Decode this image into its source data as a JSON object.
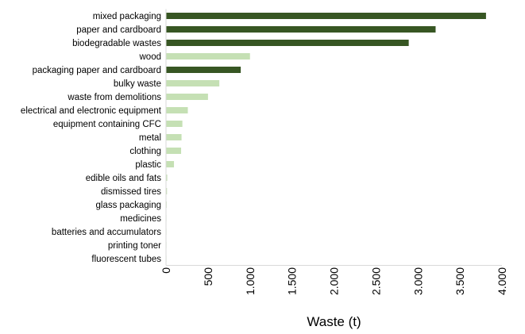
{
  "chart_data": {
    "type": "bar",
    "orientation": "horizontal",
    "title": "",
    "xlabel": "Waste (t)",
    "ylabel": "",
    "xlim": [
      0,
      4000
    ],
    "xticks": [
      0,
      500,
      1000,
      1500,
      2000,
      2500,
      3000,
      3500,
      4000
    ],
    "xtick_labels": [
      "0",
      "500",
      "1.000",
      "1.500",
      "2.000",
      "2.500",
      "3.000",
      "3.500",
      "4.000"
    ],
    "grid": false,
    "legend": "none",
    "categories": [
      "mixed packaging",
      "paper and cardboard",
      "biodegradable wastes",
      "wood",
      "packaging paper and cardboard",
      "bulky waste",
      "waste from demolitions",
      "electrical and electronic equipment",
      "equipment containing CFC",
      "metal",
      "clothing",
      "plastic",
      "edible oils and fats",
      "dismissed tires",
      "glass packaging",
      "medicines",
      "batteries and accumulators",
      "printing toner",
      "fluorescent tubes"
    ],
    "values": [
      3810,
      3210,
      2890,
      1000,
      890,
      635,
      500,
      260,
      195,
      185,
      180,
      95,
      15,
      12,
      8,
      5,
      4,
      3,
      2
    ],
    "bar_colors": [
      "#375623",
      "#375623",
      "#375623",
      "#c5e0b4",
      "#375623",
      "#c5e0b4",
      "#c5e0b4",
      "#c5e0b4",
      "#c5e0b4",
      "#c5e0b4",
      "#c5e0b4",
      "#c5e0b4",
      "#c5e0b4",
      "#c5e0b4",
      "#c5e0b4",
      "#c5e0b4",
      "#c5e0b4",
      "#c5e0b4",
      "#c5e0b4"
    ],
    "axis_color": "#d9d9d9"
  }
}
